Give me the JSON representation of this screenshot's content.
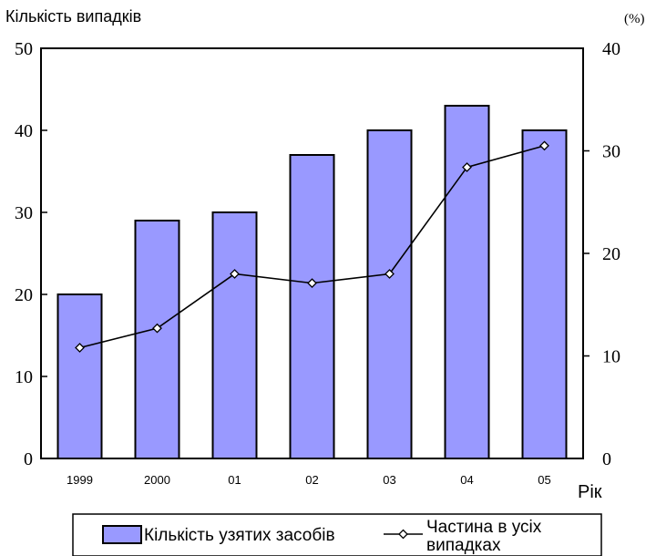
{
  "chart_data": {
    "type": "bar",
    "title": "",
    "ylabel": "Кількість випадків",
    "y2label": "(%)",
    "xlabel": "Рік",
    "categories": [
      "1999",
      "2000",
      "01",
      "02",
      "03",
      "04",
      "05"
    ],
    "ylim": [
      0,
      50
    ],
    "yticks": [
      "0",
      "10",
      "20",
      "30",
      "40",
      "50"
    ],
    "y2lim": [
      0,
      40
    ],
    "y2ticks": [
      "0",
      "10",
      "20",
      "30",
      "40"
    ],
    "grid": false,
    "legend_position": "bottom",
    "series": [
      {
        "name": "Кількість узятих засобів",
        "type": "bar",
        "axis": "left",
        "values": [
          20,
          29,
          30,
          37,
          40,
          43,
          40
        ],
        "color": "#9999ff"
      },
      {
        "name": "Частина в усіх випадках",
        "type": "line",
        "axis": "right",
        "values": [
          10.8,
          12.7,
          18.0,
          17.1,
          18.0,
          28.4,
          30.5
        ],
        "color": "#000000"
      }
    ]
  },
  "legend": {
    "bar_label": "Кількість узятих засобів",
    "line_label_1": "Частина в усіх",
    "line_label_2": "випадках"
  }
}
